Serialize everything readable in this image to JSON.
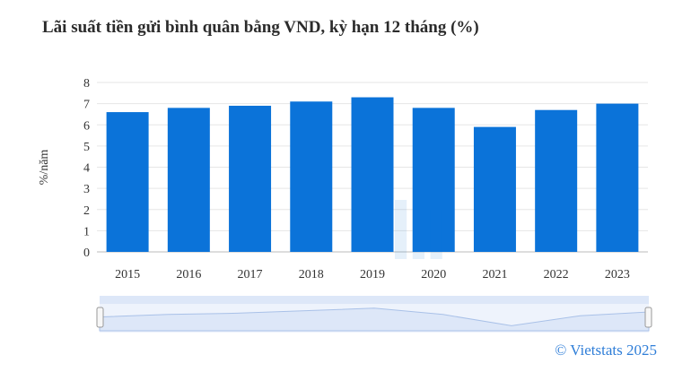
{
  "title": "Lãi suất tiền gửi bình quân bằng VND, kỳ hạn 12 tháng (%)",
  "copyright": "© Vietstats 2025",
  "colors": {
    "bar": "#0b73d9",
    "grid": "#e6e6e6",
    "navigator_fill": "#dde7f8",
    "navigator_line": "#a9c1e8"
  },
  "chart_data": {
    "type": "bar",
    "title": "Lãi suất tiền gửi bình quân bằng VND, kỳ hạn 12 tháng (%)",
    "ylabel": "%/năm",
    "xlabel": "",
    "categories": [
      "2015",
      "2016",
      "2017",
      "2018",
      "2019",
      "2020",
      "2021",
      "2022",
      "2023"
    ],
    "values": [
      6.6,
      6.8,
      6.9,
      7.1,
      7.3,
      6.8,
      5.9,
      6.7,
      7.0
    ],
    "ylim": [
      0,
      8
    ],
    "yticks": [
      "0",
      "1",
      "2",
      "3",
      "4",
      "5",
      "6",
      "7",
      "8"
    ],
    "grid": true,
    "legend": "none"
  }
}
